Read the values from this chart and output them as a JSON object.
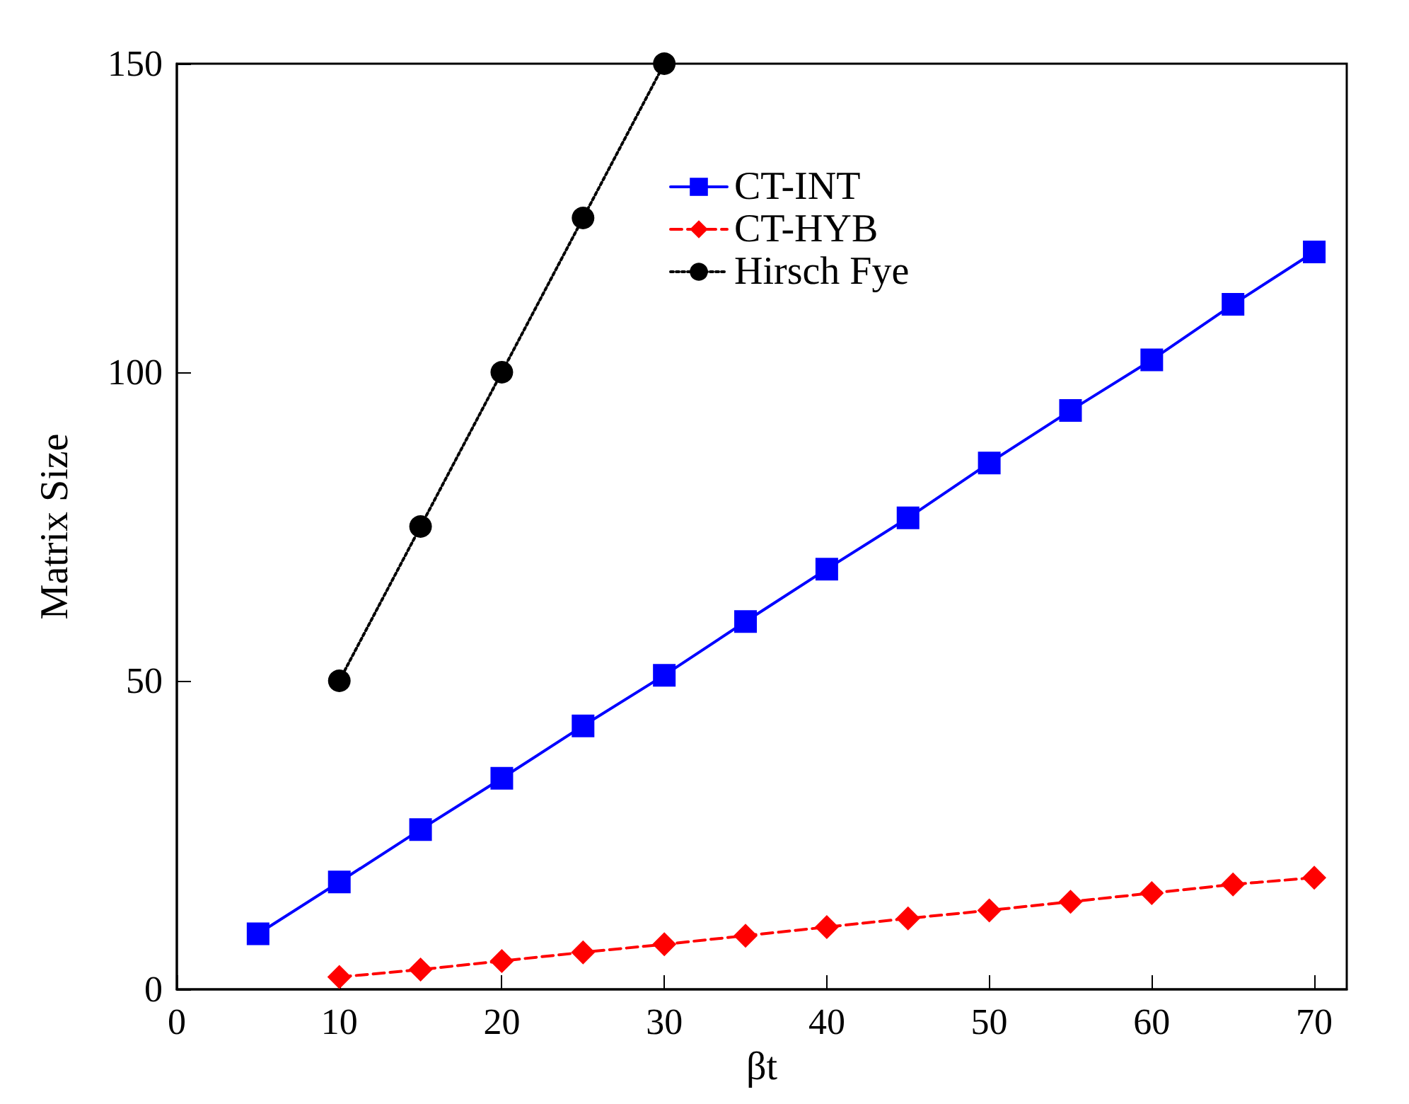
{
  "chart_data": {
    "type": "line",
    "xlabel": "βt",
    "ylabel": "Matrix Size",
    "xlim": [
      0,
      72
    ],
    "xticks": [
      0,
      10,
      20,
      30,
      40,
      50,
      60,
      70
    ],
    "ylim": [
      0,
      150
    ],
    "yticks": [
      0,
      50,
      100,
      150
    ],
    "grid": false,
    "legend": "top",
    "series": [
      {
        "name": "CT-INT",
        "color": "#0000ff",
        "marker": "square",
        "line_style": "solid",
        "x": [
          5,
          10,
          15,
          20,
          25,
          30,
          35,
          40,
          45,
          50,
          55,
          60,
          65,
          70
        ],
        "values": [
          9,
          17.4,
          25.9,
          34.2,
          42.7,
          50.9,
          59.6,
          68.1,
          76.4,
          85.3,
          93.8,
          102,
          111,
          119.5
        ]
      },
      {
        "name": "CT-HYB",
        "color": "#ff0000",
        "marker": "diamond",
        "line_style": "dashed",
        "x": [
          10,
          15,
          20,
          25,
          30,
          35,
          40,
          45,
          50,
          55,
          60,
          65,
          70
        ],
        "values": [
          2,
          3.2,
          4.6,
          6,
          7.3,
          8.7,
          10.1,
          11.5,
          12.8,
          14.2,
          15.6,
          17,
          18.1
        ]
      },
      {
        "name": "Hirsch Fye",
        "color": "#000000",
        "marker": "circle",
        "line_style": "dotted",
        "x": [
          10,
          15,
          20,
          25,
          30
        ],
        "values": [
          50,
          75,
          100,
          125,
          150
        ]
      }
    ]
  }
}
